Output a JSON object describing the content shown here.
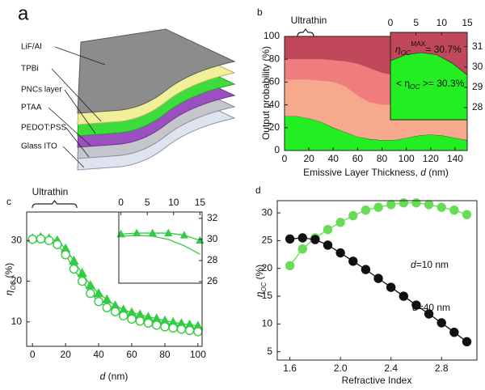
{
  "diagram": {
    "panel": "a",
    "layers": [
      "LiF/Al",
      "TPBi",
      "PNCs layer",
      "PTAA",
      "PEDOT:PSS",
      "Glass ITO"
    ]
  },
  "chart_data": [
    {
      "type": "area",
      "panel": "b",
      "bracket_label": "Ultrathin",
      "xlabel": {
        "parts": [
          "Emissive Layer Thickness, ",
          "d",
          " (nm)"
        ]
      },
      "ylabel": "Output probability (%)",
      "x": [
        0,
        10,
        20,
        30,
        40,
        50,
        60,
        70,
        80,
        90,
        100,
        110,
        120,
        130,
        140,
        150
      ],
      "xlim": [
        0,
        150
      ],
      "xticks": [
        0,
        20,
        40,
        60,
        80,
        100,
        120,
        140
      ],
      "ylim": [
        0,
        100
      ],
      "yticks": [
        0,
        20,
        40,
        60,
        80,
        100
      ],
      "series": [
        {
          "color": "#22ee22",
          "values": [
            30,
            30,
            28,
            25,
            20,
            16,
            12,
            10,
            9,
            9,
            11,
            13,
            14,
            13,
            11,
            9
          ]
        },
        {
          "color": "#f6a98c",
          "values": [
            32,
            32,
            34,
            36,
            40,
            40,
            36,
            32,
            31,
            31,
            29,
            27,
            26,
            27,
            29,
            31
          ]
        },
        {
          "color": "#ef7d7d",
          "values": [
            18,
            18,
            18,
            19,
            19,
            22,
            28,
            30,
            28,
            26,
            25,
            25,
            25,
            25,
            25,
            25
          ]
        },
        {
          "color": "#c0485a",
          "values": [
            20,
            20,
            20,
            20,
            21,
            22,
            24,
            28,
            32,
            34,
            35,
            35,
            35,
            35,
            35,
            35
          ]
        }
      ]
    },
    {
      "type": "area",
      "background": "#c0485a",
      "x": [
        0,
        3,
        6,
        9,
        12,
        15
      ],
      "xlim": [
        0,
        15
      ],
      "xticks": [
        0,
        5,
        10,
        15
      ],
      "ylim": [
        27.4,
        31.7
      ],
      "yticks": [
        28,
        29,
        30,
        31
      ],
      "series": [
        {
          "color": "#22ee22",
          "values": [
            30.3,
            30.6,
            30.7,
            30.6,
            30.2,
            29.6
          ]
        }
      ],
      "annotations": [
        {
          "parts": [
            "η",
            "OC",
            "MAX",
            "= 30.7%"
          ]
        },
        {
          "parts": [
            "< η",
            "OC",
            " >= 30.3%"
          ]
        }
      ]
    },
    {
      "type": "line",
      "panel": "c",
      "bracket_label": "Ultrathin",
      "xlabel": {
        "parts": [
          "d",
          " (nm)"
        ]
      },
      "ylabel": {
        "parts": [
          "η",
          "OC",
          " (%)"
        ]
      },
      "x": [
        0,
        5,
        10,
        15,
        20,
        25,
        30,
        35,
        40,
        45,
        50,
        55,
        60,
        65,
        70,
        75,
        80,
        85,
        90,
        95,
        100
      ],
      "xlim": [
        -3.5,
        102.5
      ],
      "xticks": [
        0,
        20,
        40,
        60,
        80,
        100
      ],
      "ylim": [
        4,
        37
      ],
      "yticks": [
        10,
        20,
        30
      ],
      "series": [
        {
          "color": "#33cc44",
          "marker": "triangle",
          "filled": true,
          "values": [
            30.5,
            30.8,
            30.5,
            30,
            28,
            25,
            22,
            19,
            17,
            15.5,
            14,
            13,
            12.3,
            11.8,
            11.2,
            10.8,
            10.3,
            9.9,
            9.6,
            9.3,
            9.0
          ]
        },
        {
          "color": "#33cc44",
          "marker": "circle",
          "filled": false,
          "values": [
            30.3,
            30.4,
            30,
            29,
            26.5,
            23,
            20,
            17,
            15,
            13.5,
            12.5,
            11.5,
            10.7,
            10.2,
            9.7,
            9.2,
            8.8,
            8.5,
            8.2,
            7.9,
            7.6
          ]
        }
      ]
    },
    {
      "type": "line",
      "x": [
        0,
        3,
        6,
        9,
        12,
        15
      ],
      "xlim": [
        -0.4,
        15.4
      ],
      "xticks": [
        0,
        5,
        10,
        15
      ],
      "ylim": [
        25.85,
        32.6
      ],
      "yticks": [
        26,
        28,
        30,
        32
      ],
      "series": [
        {
          "color": "#33cc44",
          "marker": "triangle",
          "filled": true,
          "values": [
            30.5,
            30.6,
            30.6,
            30.6,
            30.4,
            29.9
          ]
        },
        {
          "color": "#33cc44",
          "marker": "none",
          "values": [
            30.3,
            30.4,
            30.3,
            30.0,
            29.4,
            28.6
          ]
        }
      ]
    },
    {
      "type": "line",
      "panel": "d",
      "xlabel": "Refractive Index",
      "ylabel": {
        "parts": [
          "η",
          "OC",
          " (%)"
        ]
      },
      "x": [
        1.6,
        1.7,
        1.8,
        1.9,
        2.0,
        2.1,
        2.2,
        2.3,
        2.4,
        2.5,
        2.6,
        2.7,
        2.8,
        2.9,
        3.0
      ],
      "xlim": [
        1.5,
        3.08
      ],
      "xticks": [
        1.6,
        {
          "value": 2,
          "label": "2.0"
        },
        2.4,
        2.8
      ],
      "ylim": [
        3.5,
        32.2
      ],
      "yticks": [
        5,
        10,
        15,
        20,
        25,
        30
      ],
      "series": [
        {
          "color": "#66dd55",
          "marker": "circle",
          "filled": true,
          "values": [
            20.5,
            23.5,
            25.5,
            27,
            28.3,
            29.5,
            30.5,
            31,
            31.5,
            31.8,
            31.8,
            31.5,
            31,
            30.5,
            29.7
          ]
        },
        {
          "color": "#111111",
          "marker": "circle",
          "filled": true,
          "values": [
            25.3,
            25.5,
            25.2,
            24.2,
            22.8,
            21.3,
            19.8,
            18.2,
            16.6,
            15,
            13.4,
            11.8,
            10.2,
            8.5,
            6.8
          ]
        }
      ],
      "annotations": [
        {
          "parts": [
            "d",
            "=10 nm"
          ]
        },
        {
          "parts": [
            "d",
            "=40 nm"
          ]
        }
      ]
    }
  ]
}
